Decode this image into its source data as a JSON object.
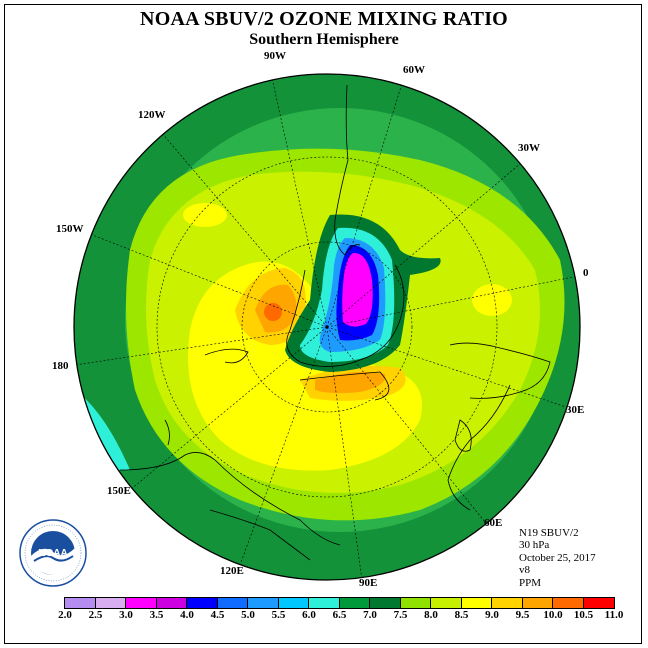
{
  "title": "NOAA SBUV/2 OZONE MIXING RATIO",
  "subtitle": "Southern Hemisphere",
  "longitude_labels": [
    "90W",
    "60W",
    "30W",
    "0",
    "30E",
    "60E",
    "90E",
    "120E",
    "150E",
    "180",
    "150W",
    "120W"
  ],
  "info": {
    "satellite": "N19 SBUV/2",
    "pressure": "30 hPa",
    "date": "October 25, 2017",
    "version": "v8",
    "units": "PPM"
  },
  "logo": {
    "text": "NOAA",
    "ring_text": "NATIONAL OCEANIC AND ATMOSPHERIC ADMINISTRATION · U.S. DEPARTMENT OF COMMERCE"
  },
  "colorbar": {
    "ticks": [
      "2.0",
      "2.5",
      "3.0",
      "3.5",
      "4.0",
      "4.5",
      "5.0",
      "5.5",
      "6.0",
      "6.5",
      "7.0",
      "7.5",
      "8.0",
      "8.5",
      "9.0",
      "9.5",
      "10.0",
      "10.5",
      "11.0"
    ],
    "colors": [
      "#b58cf0",
      "#d8aef0",
      "#ff00ff",
      "#cc00e0",
      "#0000ff",
      "#0f6cff",
      "#1e9bff",
      "#00c8ff",
      "#2ef0d8",
      "#009a3a",
      "#007830",
      "#90e000",
      "#c6f000",
      "#ffff00",
      "#ffd200",
      "#ffa500",
      "#ff6a00",
      "#ff0000",
      "#8b4a2b"
    ]
  },
  "map_colors": {
    "outer": "#13923a",
    "green2": "#2cb24a",
    "lime": "#9ce600",
    "lightlime": "#c9f100",
    "yellow": "#ffff00",
    "gold": "#ffd200",
    "orange": "#ffa500",
    "darkorange": "#ff6a00",
    "cyan": "#2ef0d8",
    "darkgreen": "#007830",
    "blue2": "#1e9bff",
    "blue": "#0000ff",
    "magenta": "#ff00ff"
  }
}
